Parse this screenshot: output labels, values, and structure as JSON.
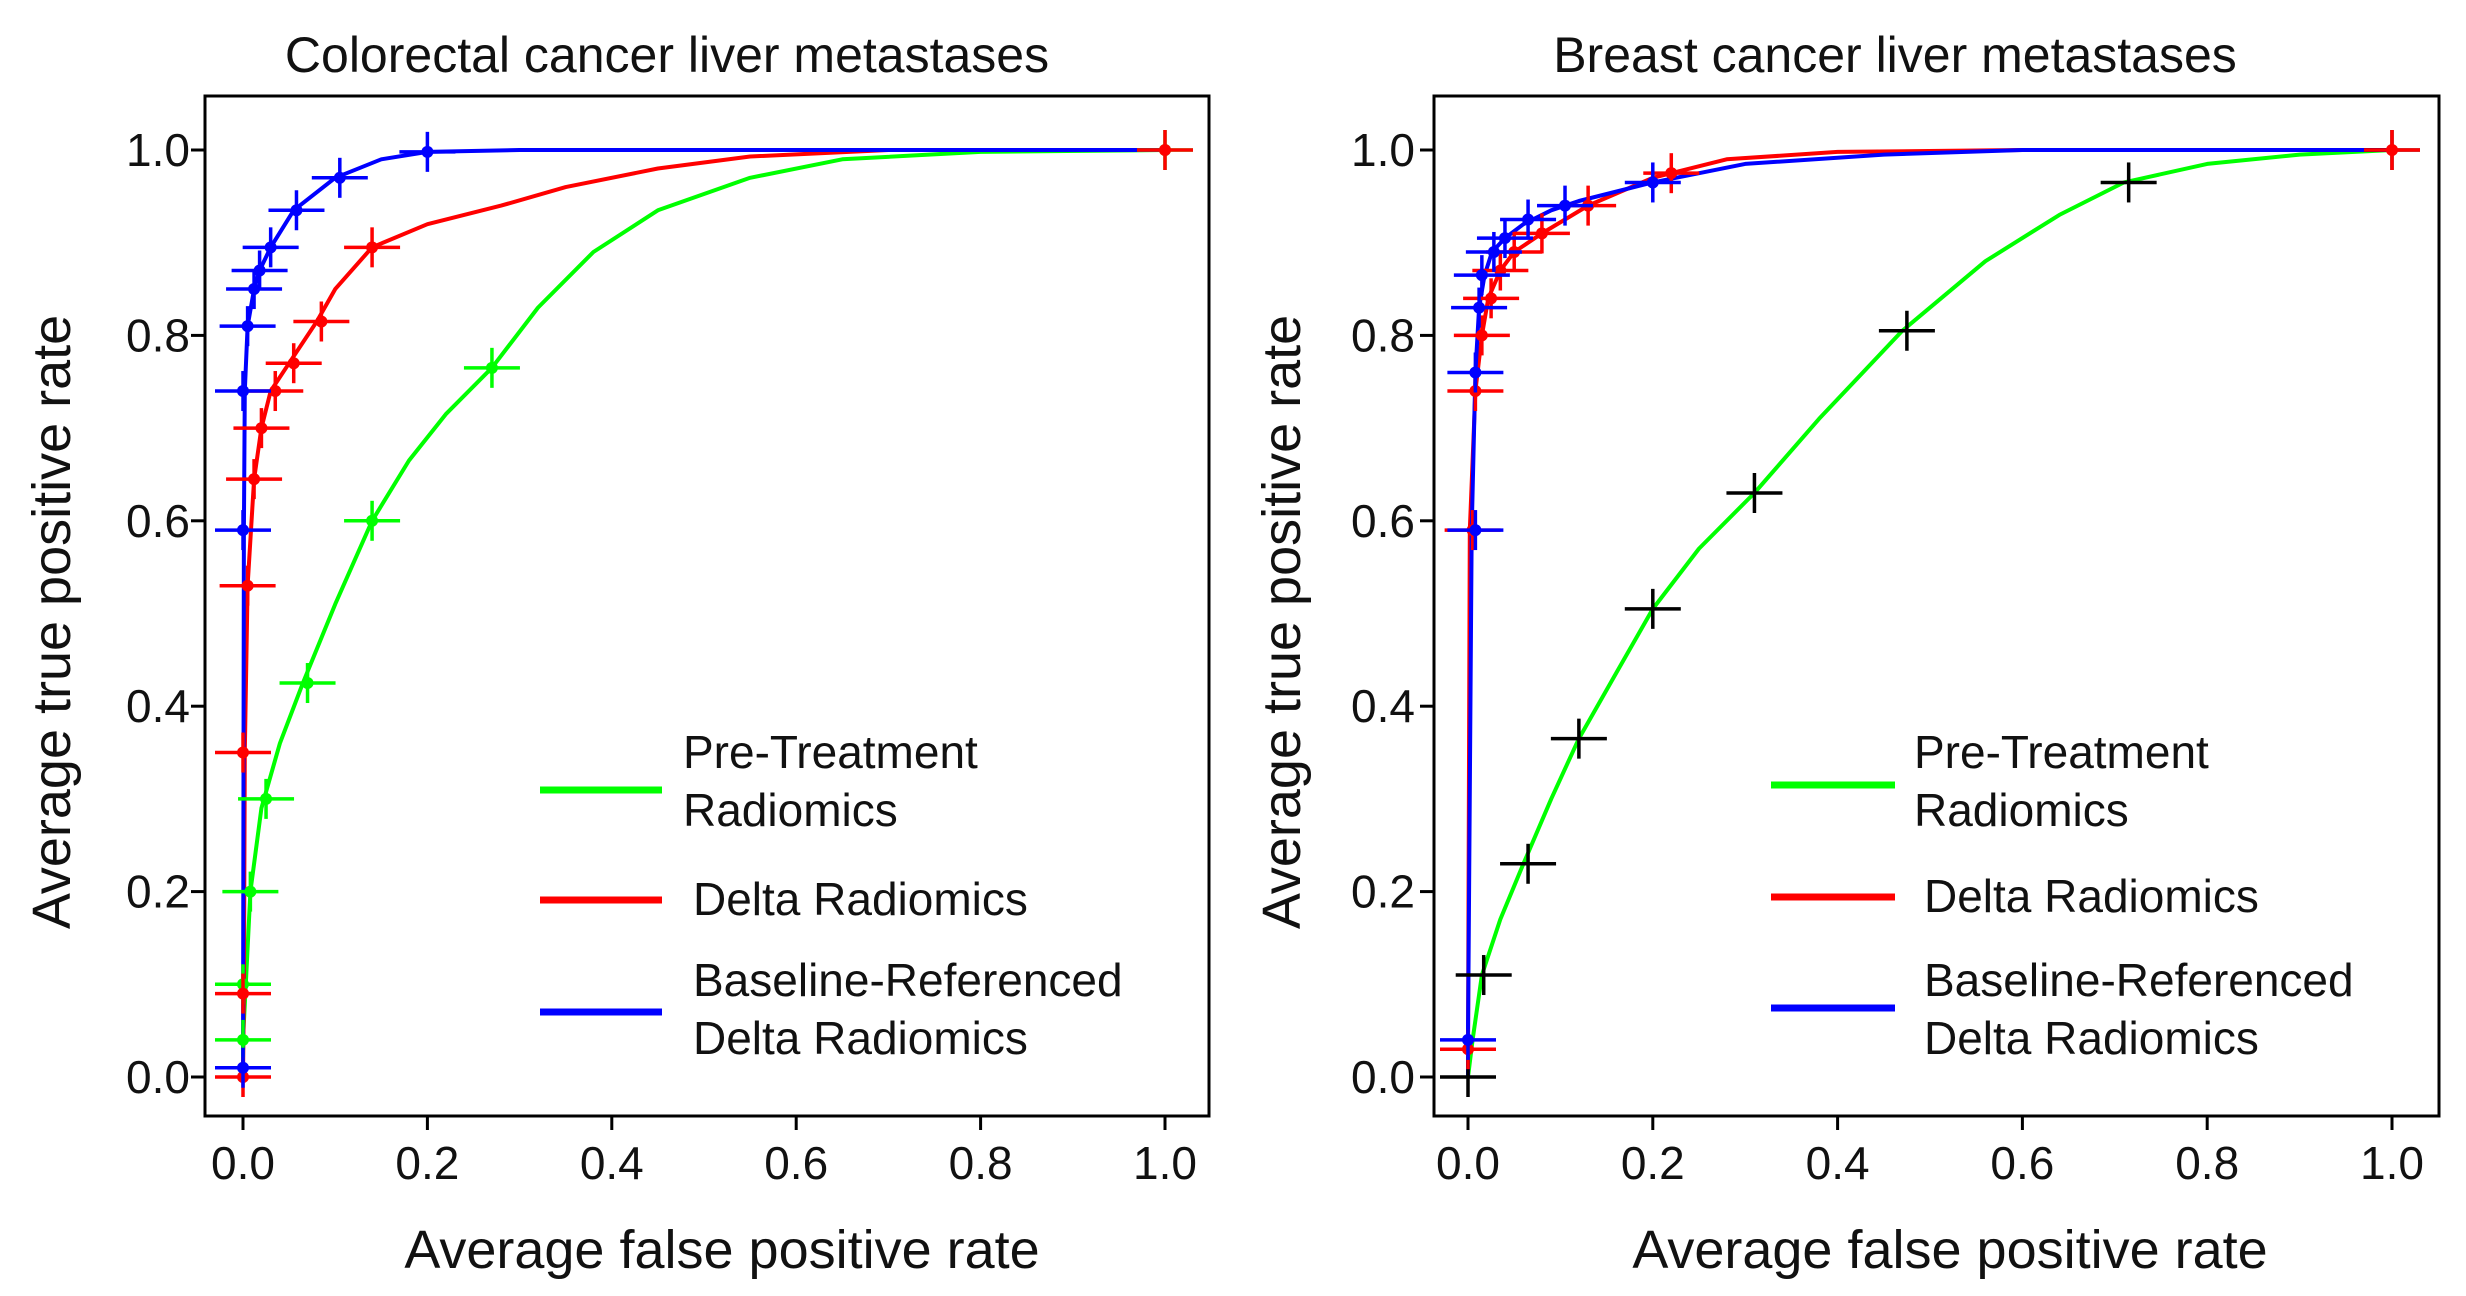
{
  "chart_data": [
    {
      "type": "line",
      "title": "Colorectal cancer liver metastases",
      "xlabel": "Average false positive rate",
      "ylabel": "Average true positive rate",
      "xlim": [
        -0.04,
        1.04
      ],
      "ylim": [
        -0.04,
        1.05
      ],
      "xticks": [
        "0.0",
        "0.2",
        "0.4",
        "0.6",
        "0.8",
        "1.0"
      ],
      "yticks": [
        "0.0",
        "0.2",
        "0.4",
        "0.6",
        "0.8",
        "1.0"
      ],
      "legend": {
        "placement": "bottom-right"
      },
      "series": [
        {
          "name": "Pre-Treatment Radiomics",
          "color": "#00ff00",
          "curve": [
            [
              0,
              0
            ],
            [
              0,
              0.04
            ],
            [
              0.003,
              0.1
            ],
            [
              0.008,
              0.2
            ],
            [
              0.02,
              0.29
            ],
            [
              0.04,
              0.36
            ],
            [
              0.065,
              0.425
            ],
            [
              0.1,
              0.51
            ],
            [
              0.14,
              0.6
            ],
            [
              0.18,
              0.665
            ],
            [
              0.22,
              0.715
            ],
            [
              0.27,
              0.765
            ],
            [
              0.32,
              0.83
            ],
            [
              0.38,
              0.89
            ],
            [
              0.45,
              0.935
            ],
            [
              0.55,
              0.97
            ],
            [
              0.65,
              0.99
            ],
            [
              0.8,
              0.998
            ],
            [
              1,
              1
            ]
          ],
          "markers": [
            [
              0,
              0.04
            ],
            [
              0,
              0.1
            ],
            [
              0.008,
              0.2
            ],
            [
              0.025,
              0.3
            ],
            [
              0.07,
              0.425
            ],
            [
              0.14,
              0.6
            ],
            [
              0.27,
              0.765
            ],
            [
              1,
              1
            ]
          ]
        },
        {
          "name": "Delta Radiomics",
          "color": "#ff0000",
          "curve": [
            [
              0,
              0
            ],
            [
              0.001,
              0.09
            ],
            [
              0.002,
              0.35
            ],
            [
              0.005,
              0.53
            ],
            [
              0.012,
              0.645
            ],
            [
              0.02,
              0.7
            ],
            [
              0.03,
              0.74
            ],
            [
              0.05,
              0.77
            ],
            [
              0.08,
              0.815
            ],
            [
              0.1,
              0.85
            ],
            [
              0.14,
              0.895
            ],
            [
              0.2,
              0.92
            ],
            [
              0.28,
              0.94
            ],
            [
              0.35,
              0.96
            ],
            [
              0.45,
              0.98
            ],
            [
              0.55,
              0.993
            ],
            [
              0.7,
              1
            ],
            [
              1,
              1
            ]
          ],
          "markers": [
            [
              0,
              0
            ],
            [
              0,
              0.09
            ],
            [
              0,
              0.35
            ],
            [
              0.005,
              0.53
            ],
            [
              0.012,
              0.645
            ],
            [
              0.02,
              0.7
            ],
            [
              0.035,
              0.74
            ],
            [
              0.055,
              0.77
            ],
            [
              0.085,
              0.815
            ],
            [
              0.14,
              0.895
            ],
            [
              1,
              1
            ]
          ]
        },
        {
          "name": "Baseline-Referenced Delta Radiomics",
          "color": "#0000ff",
          "curve": [
            [
              0,
              0
            ],
            [
              0,
              0.01
            ],
            [
              0.001,
              0.59
            ],
            [
              0.002,
              0.74
            ],
            [
              0.005,
              0.81
            ],
            [
              0.012,
              0.85
            ],
            [
              0.018,
              0.87
            ],
            [
              0.03,
              0.895
            ],
            [
              0.055,
              0.935
            ],
            [
              0.1,
              0.97
            ],
            [
              0.15,
              0.99
            ],
            [
              0.2,
              0.998
            ],
            [
              0.3,
              1
            ],
            [
              1,
              1
            ]
          ],
          "markers": [
            [
              0,
              0.01
            ],
            [
              0,
              0.59
            ],
            [
              0,
              0.74
            ],
            [
              0.005,
              0.81
            ],
            [
              0.012,
              0.85
            ],
            [
              0.018,
              0.87
            ],
            [
              0.03,
              0.895
            ],
            [
              0.058,
              0.935
            ],
            [
              0.105,
              0.97
            ],
            [
              0.2,
              0.998
            ]
          ]
        }
      ]
    },
    {
      "type": "line",
      "title": "Breast cancer liver metastases",
      "xlabel": "Average false positive rate",
      "ylabel": "Average true positive rate",
      "xlim": [
        -0.04,
        1.04
      ],
      "ylim": [
        -0.04,
        1.05
      ],
      "xticks": [
        "0.0",
        "0.2",
        "0.4",
        "0.6",
        "0.8",
        "1.0"
      ],
      "yticks": [
        "0.0",
        "0.2",
        "0.4",
        "0.6",
        "0.8",
        "1.0"
      ],
      "legend": {
        "placement": "bottom-right"
      },
      "series": [
        {
          "name": "Pre-Treatment Radiomics",
          "color": "#00ff00",
          "curve": [
            [
              0,
              0
            ],
            [
              0.005,
              0.04
            ],
            [
              0.015,
              0.11
            ],
            [
              0.035,
              0.17
            ],
            [
              0.06,
              0.23
            ],
            [
              0.09,
              0.3
            ],
            [
              0.12,
              0.365
            ],
            [
              0.16,
              0.435
            ],
            [
              0.2,
              0.505
            ],
            [
              0.25,
              0.57
            ],
            [
              0.31,
              0.63
            ],
            [
              0.38,
              0.71
            ],
            [
              0.47,
              0.805
            ],
            [
              0.56,
              0.88
            ],
            [
              0.64,
              0.93
            ],
            [
              0.71,
              0.965
            ],
            [
              0.8,
              0.985
            ],
            [
              0.9,
              0.995
            ],
            [
              1,
              1
            ]
          ],
          "markers": [
            [
              0,
              0
            ],
            [
              0.017,
              0.11
            ],
            [
              0.065,
              0.23
            ],
            [
              0.12,
              0.365
            ],
            [
              0.2,
              0.505
            ],
            [
              0.31,
              0.63
            ],
            [
              0.475,
              0.805
            ],
            [
              0.715,
              0.965
            ],
            [
              1,
              1
            ]
          ]
        },
        {
          "name": "Delta Radiomics",
          "color": "#ff0000",
          "curve": [
            [
              0,
              0
            ],
            [
              0,
              0.03
            ],
            [
              0.002,
              0.59
            ],
            [
              0.008,
              0.74
            ],
            [
              0.015,
              0.8
            ],
            [
              0.022,
              0.84
            ],
            [
              0.035,
              0.87
            ],
            [
              0.05,
              0.89
            ],
            [
              0.08,
              0.91
            ],
            [
              0.13,
              0.94
            ],
            [
              0.2,
              0.97
            ],
            [
              0.28,
              0.99
            ],
            [
              0.4,
              0.998
            ],
            [
              0.6,
              1
            ],
            [
              1,
              1
            ]
          ],
          "markers": [
            [
              0,
              0.03
            ],
            [
              0.005,
              0.59
            ],
            [
              0.008,
              0.74
            ],
            [
              0.015,
              0.8
            ],
            [
              0.025,
              0.84
            ],
            [
              0.035,
              0.87
            ],
            [
              0.05,
              0.89
            ],
            [
              0.08,
              0.91
            ],
            [
              0.13,
              0.94
            ],
            [
              0.22,
              0.975
            ],
            [
              1,
              1
            ]
          ]
        },
        {
          "name": "Baseline-Referenced Delta Radiomics",
          "color": "#0000ff",
          "curve": [
            [
              0,
              0
            ],
            [
              0,
              0.04
            ],
            [
              0.004,
              0.59
            ],
            [
              0.008,
              0.76
            ],
            [
              0.012,
              0.83
            ],
            [
              0.018,
              0.865
            ],
            [
              0.026,
              0.89
            ],
            [
              0.04,
              0.905
            ],
            [
              0.06,
              0.92
            ],
            [
              0.09,
              0.935
            ],
            [
              0.12,
              0.945
            ],
            [
              0.2,
              0.965
            ],
            [
              0.3,
              0.985
            ],
            [
              0.45,
              0.995
            ],
            [
              0.6,
              1
            ],
            [
              1,
              1
            ]
          ],
          "markers": [
            [
              0,
              0.04
            ],
            [
              0.008,
              0.59
            ],
            [
              0.008,
              0.76
            ],
            [
              0.012,
              0.83
            ],
            [
              0.015,
              0.865
            ],
            [
              0.028,
              0.89
            ],
            [
              0.04,
              0.905
            ],
            [
              0.065,
              0.925
            ],
            [
              0.105,
              0.94
            ],
            [
              0.2,
              0.965
            ]
          ]
        }
      ]
    }
  ]
}
